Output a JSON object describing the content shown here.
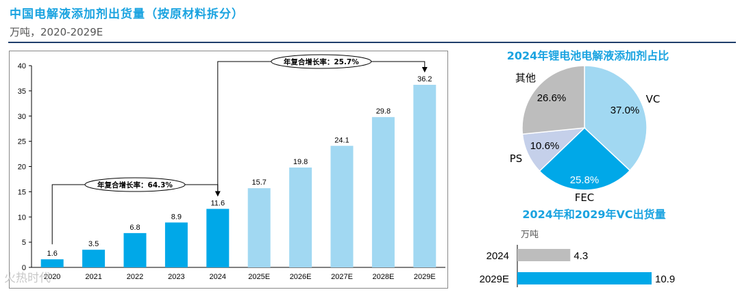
{
  "header": {
    "title": "中国电解液添加剂出货量（按原材料拆分）",
    "subtitle": "万吨，2020-2029E"
  },
  "watermark": "火热时代",
  "colors": {
    "dark_blue": "#00a8e8",
    "light_blue": "#a1d8f2",
    "gray": "#bdbdbd",
    "title_blue": "#1aa3e0"
  },
  "chart_data": [
    {
      "type": "bar",
      "categories": [
        "2020",
        "2021",
        "2022",
        "2023",
        "2024",
        "2025E",
        "2026E",
        "2027E",
        "2028E",
        "2029E"
      ],
      "values": [
        1.6,
        3.5,
        6.8,
        8.9,
        11.6,
        15.7,
        19.8,
        24.1,
        29.8,
        36.2
      ],
      "forecast": [
        false,
        false,
        false,
        false,
        false,
        true,
        true,
        true,
        true,
        true
      ],
      "ylim": [
        0,
        40
      ],
      "yticks": [
        0,
        5,
        10,
        15,
        20,
        25,
        30,
        35,
        40
      ],
      "annotations": [
        {
          "label": "年复合增长率：64.3%",
          "from": "2020",
          "to": "2024"
        },
        {
          "label": "年复合增长率：25.7%",
          "from": "2024",
          "to": "2029E"
        }
      ]
    },
    {
      "type": "pie",
      "title": "2024年锂电池电解液添加剂占比",
      "slices": [
        {
          "label": "VC",
          "value": 37.0,
          "display": "37.0%"
        },
        {
          "label": "FEC",
          "value": 25.8,
          "display": "25.8%"
        },
        {
          "label": "PS",
          "value": 10.6,
          "display": "10.6%"
        },
        {
          "label": "其他",
          "value": 26.6,
          "display": "26.6%"
        }
      ]
    },
    {
      "type": "bar",
      "orientation": "horizontal",
      "title": "2024年和2029年VC出货量",
      "unit": "万吨",
      "categories": [
        "2024",
        "2029E"
      ],
      "values": [
        4.3,
        10.9
      ]
    }
  ]
}
